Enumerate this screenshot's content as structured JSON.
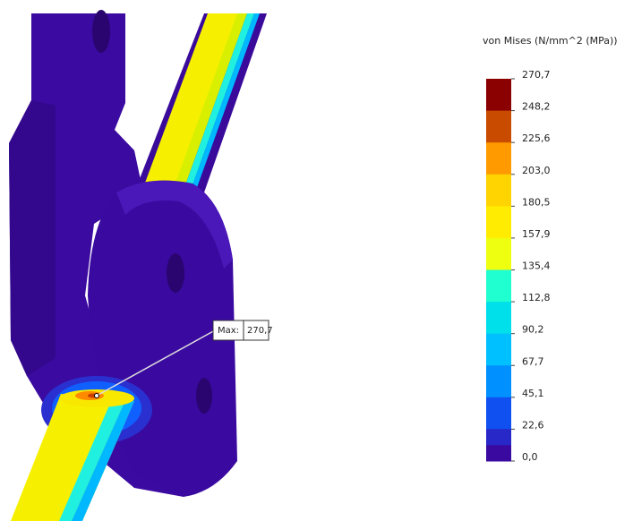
{
  "legend": {
    "title": "von Mises (N/mm^2 (MPa))",
    "labels": [
      "270,7",
      "248,2",
      "225,6",
      "203,0",
      "180,5",
      "157,9",
      "135,4",
      "112,8",
      "90,2",
      "67,7",
      "45,1",
      "22,6",
      "0,0"
    ]
  },
  "callout": {
    "label": "Max:",
    "value": "270,7"
  }
}
